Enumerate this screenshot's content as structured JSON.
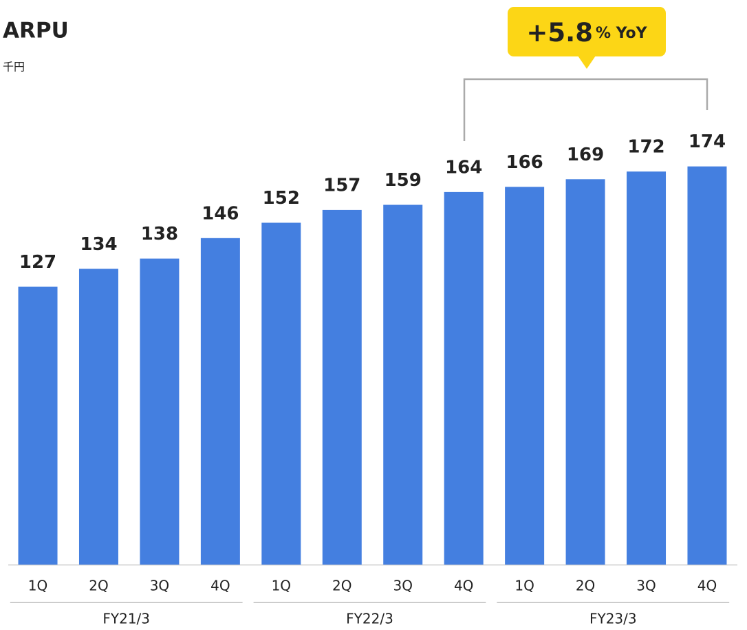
{
  "chart_data": {
    "type": "bar",
    "title": "ARPU",
    "unit": "千円",
    "categories": [
      "1Q",
      "2Q",
      "3Q",
      "4Q",
      "1Q",
      "2Q",
      "3Q",
      "4Q",
      "1Q",
      "2Q",
      "3Q",
      "4Q"
    ],
    "groups": [
      "FY21/3",
      "FY22/3",
      "FY23/3"
    ],
    "values": [
      127,
      134,
      138,
      146,
      152,
      157,
      159,
      164,
      166,
      169,
      172,
      174
    ],
    "color": "#447fe0",
    "ylim": [
      18.5,
      200
    ],
    "annotation": {
      "main": "+5.8",
      "rest": "% YoY"
    }
  }
}
